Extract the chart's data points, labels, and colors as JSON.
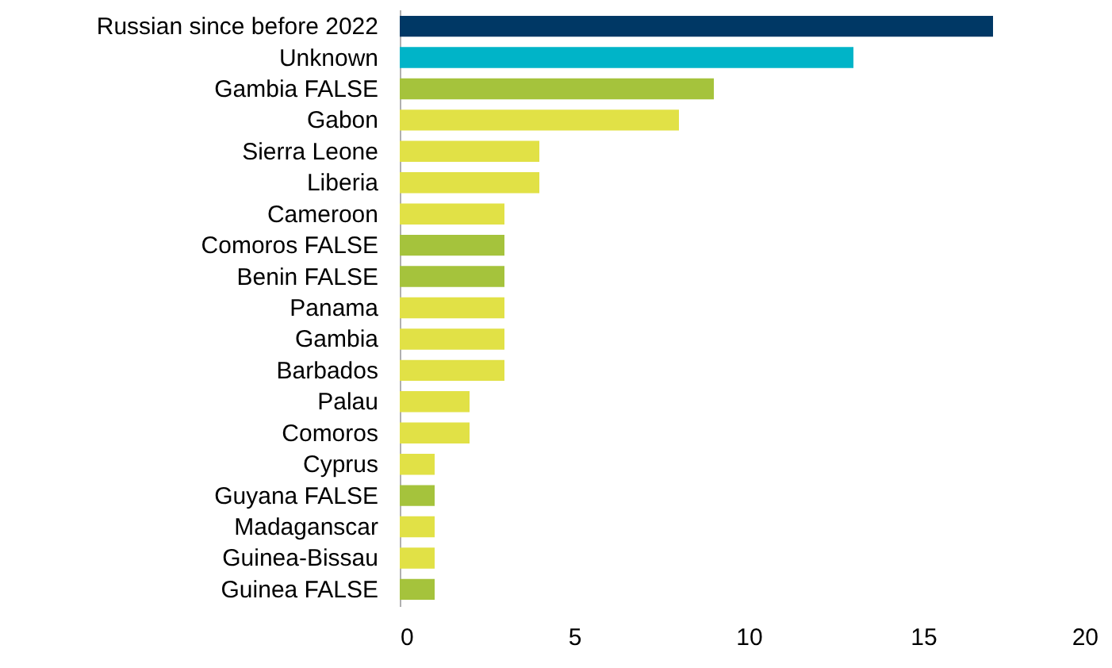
{
  "chart_data": {
    "type": "bar",
    "orientation": "horizontal",
    "categories": [
      "Russian since before 2022",
      "Unknown",
      "Gambia FALSE",
      "Gabon",
      "Sierra Leone",
      "Liberia",
      "Cameroon",
      "Comoros FALSE",
      "Benin FALSE",
      "Panama",
      "Gambia",
      "Barbados",
      "Palau",
      "Comoros",
      "Cyprus",
      "Guyana FALSE",
      "Madaganscar",
      "Guinea-Bissau",
      "Guinea FALSE"
    ],
    "values": [
      17,
      13,
      9,
      8,
      4,
      4,
      3,
      3,
      3,
      3,
      3,
      3,
      2,
      2,
      1,
      1,
      1,
      1,
      1
    ],
    "colors": [
      "#003865",
      "#00b4c8",
      "#a5c33c",
      "#e1e146",
      "#e1e146",
      "#e1e146",
      "#e1e146",
      "#a5c33c",
      "#a5c33c",
      "#e1e146",
      "#e1e146",
      "#e1e146",
      "#e1e146",
      "#e1e146",
      "#e1e146",
      "#a5c33c",
      "#e1e146",
      "#e1e146",
      "#a5c33c"
    ],
    "xlim": [
      0,
      20
    ],
    "xticks": [
      0,
      5,
      10,
      15,
      20
    ],
    "grid": false
  }
}
